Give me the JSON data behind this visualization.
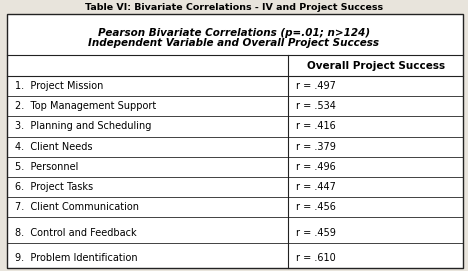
{
  "title_line1": "Table VI: Bivariate Correlations - IV and Project Success",
  "title_line2": "Pearson Bivariate Correlations (p=.01; n>124)",
  "title_line3": "Independent Variable and Overall Project Success",
  "col_header": "Overall Project Success",
  "rows": [
    {
      "label": "1.  Project Mission",
      "value": "r = .497"
    },
    {
      "label": "2.  Top Management Support",
      "value": "r = .534"
    },
    {
      "label": "3.  Planning and Scheduling",
      "value": "r = .416"
    },
    {
      "label": "4.  Client Needs",
      "value": "r = .379"
    },
    {
      "label": "5.  Personnel",
      "value": "r = .496"
    },
    {
      "label": "6.  Project Tasks",
      "value": "r = .447"
    },
    {
      "label": "7.  Client Communication",
      "value": "r = .456"
    },
    {
      "label": "8.  Control and Feedback",
      "value": "r = .459"
    },
    {
      "label": "9.  Problem Identification",
      "value": "r = .610"
    }
  ],
  "background_color": "#e8e4dc",
  "border_color": "#222222",
  "text_color": "#000000",
  "col_split": 0.6,
  "title1_fontsize": 6.8,
  "header_fontsize": 7.5,
  "row_fontsize": 7.0,
  "col_header_fontsize": 7.5
}
